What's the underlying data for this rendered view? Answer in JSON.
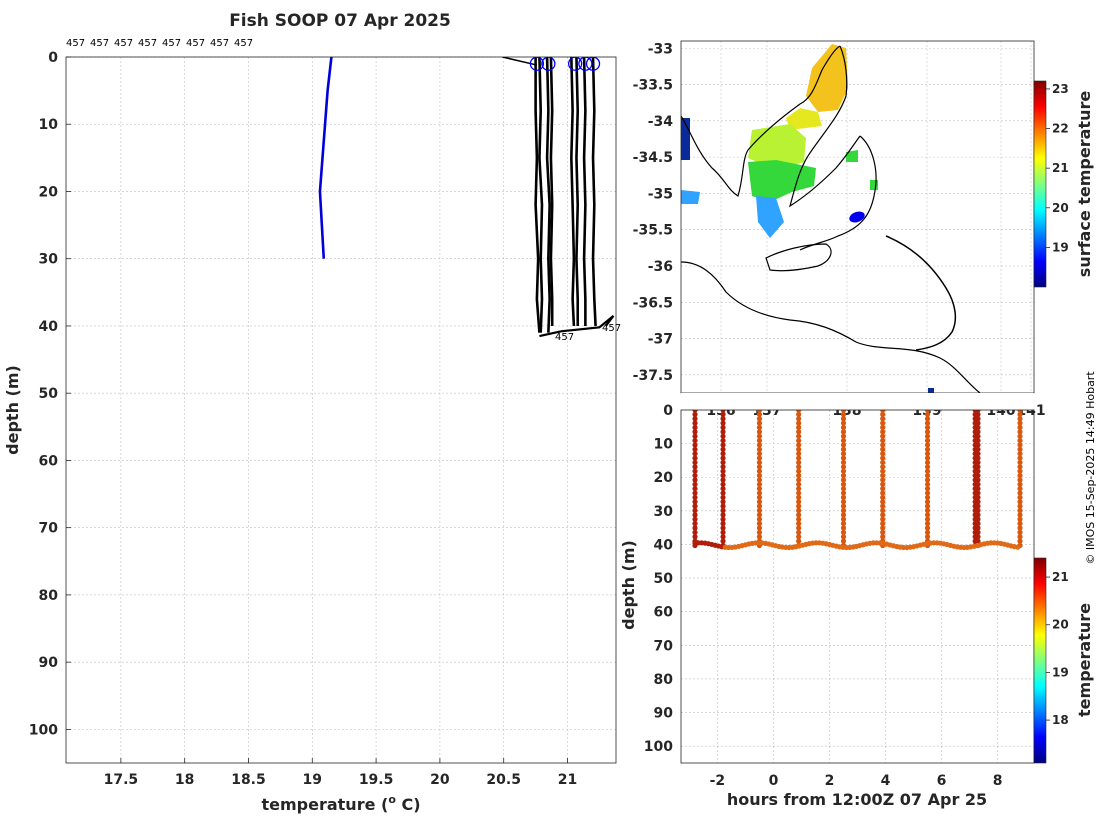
{
  "title": "Fish SOOP 07 Apr 2025",
  "credit": "© IMOS 15-Sep-2025 14:49 Hobart",
  "colors": {
    "profile_ref": "#0000dd",
    "profiles": "#000000",
    "circle": "#0000ff"
  },
  "chart_data": [
    {
      "id": "temperature_depth_profile",
      "type": "line",
      "xlabel": "temperature (",
      "xlabel_sup": "o",
      "xlabel_end": " C)",
      "ylabel": "depth (m)",
      "xlim": [
        17.07,
        21.38
      ],
      "ylim": [
        105,
        0
      ],
      "xticks": [
        17.5,
        18,
        18.5,
        19,
        19.5,
        20,
        20.5,
        21
      ],
      "yticks": [
        0,
        10,
        20,
        30,
        40,
        50,
        60,
        70,
        80,
        90,
        100
      ],
      "top_labels": [
        "457",
        "457",
        "457",
        "457",
        "457",
        "457",
        "457",
        "457"
      ],
      "end_labels": [
        "457",
        "457"
      ],
      "reference_profile": {
        "temperature": [
          19.15,
          19.12,
          19.1,
          19.08,
          19.06,
          19.09
        ],
        "depth": [
          0,
          5,
          10,
          15,
          20,
          30
        ]
      },
      "profiles": [
        {
          "temperature": [
            20.75,
            20.75,
            20.76,
            20.75,
            20.77,
            20.76,
            20.78
          ],
          "depth": [
            0,
            8,
            15,
            22,
            30,
            36,
            41
          ]
        },
        {
          "temperature": [
            20.78,
            20.79,
            20.78,
            20.8,
            20.79,
            20.8,
            20.79
          ],
          "depth": [
            0,
            8,
            15,
            22,
            30,
            36,
            41
          ]
        },
        {
          "temperature": [
            20.84,
            20.85,
            20.84,
            20.86,
            20.85,
            20.86,
            20.85
          ],
          "depth": [
            0,
            8,
            15,
            22,
            30,
            36,
            41
          ]
        },
        {
          "temperature": [
            20.87,
            20.88,
            20.87,
            20.88,
            20.87,
            20.88,
            20.88
          ],
          "depth": [
            0,
            8,
            15,
            22,
            30,
            36,
            40
          ]
        },
        {
          "temperature": [
            21.03,
            21.04,
            21.03,
            21.04,
            21.05,
            21.04,
            21.05
          ],
          "depth": [
            0,
            8,
            15,
            22,
            30,
            36,
            40
          ]
        },
        {
          "temperature": [
            21.07,
            21.08,
            21.07,
            21.08,
            21.07,
            21.08,
            21.08
          ],
          "depth": [
            0,
            8,
            15,
            22,
            30,
            36,
            40
          ]
        },
        {
          "temperature": [
            21.13,
            21.14,
            21.13,
            21.14,
            21.13,
            21.14,
            21.14
          ],
          "depth": [
            0,
            8,
            15,
            22,
            30,
            36,
            40
          ]
        },
        {
          "temperature": [
            21.2,
            21.21,
            21.2,
            21.21,
            21.2,
            21.21,
            21.22
          ],
          "depth": [
            0,
            8,
            15,
            22,
            30,
            36,
            40
          ]
        }
      ],
      "surface_points": {
        "temperature": [
          20.76,
          20.85,
          21.06,
          21.14,
          21.2
        ],
        "depth": [
          1,
          1,
          1,
          1,
          1
        ]
      }
    },
    {
      "id": "surface_temperature_map",
      "type": "heatmap",
      "lat_ticks": [
        -33,
        -33.5,
        -34,
        -34.5,
        -35,
        -35.5,
        -36,
        -36.5,
        -37,
        -37.5
      ],
      "lon_ticks": [
        "136",
        "137",
        "138",
        "139",
        "140",
        "141"
      ],
      "ylim": [
        -37.75,
        -32.9
      ],
      "colorbar_label": "surface temperature",
      "colorbar_ticks": [
        23,
        22,
        21,
        20,
        19
      ],
      "colorbar_range": [
        18,
        23.2
      ],
      "vessel_position": [
        138.1,
        -35.28
      ]
    },
    {
      "id": "temperature_depth_time_section",
      "type": "scatter",
      "xlabel": "hours from 12:00Z 07 Apr 25",
      "ylabel": "depth (m)",
      "xlim": [
        -3.3,
        9.3
      ],
      "ylim": [
        105,
        0
      ],
      "xticks": [
        -2,
        0,
        2,
        4,
        6,
        8
      ],
      "yticks": [
        0,
        10,
        20,
        30,
        40,
        50,
        60,
        70,
        80,
        90,
        100
      ],
      "casts_hours": [
        -2.8,
        -1.8,
        -0.5,
        0.9,
        2.5,
        3.9,
        5.5,
        7.2,
        7.3,
        8.8
      ],
      "casts_temperature": [
        21.2,
        21.2,
        20.5,
        20.4,
        20.4,
        20.5,
        20.4,
        21.1,
        21.2,
        20.4
      ],
      "bottom_depth_m": 41,
      "colorbar_label": "temperature",
      "colorbar_ticks": [
        21,
        20,
        19,
        18
      ],
      "colorbar_range": [
        17.1,
        21.4
      ]
    }
  ]
}
